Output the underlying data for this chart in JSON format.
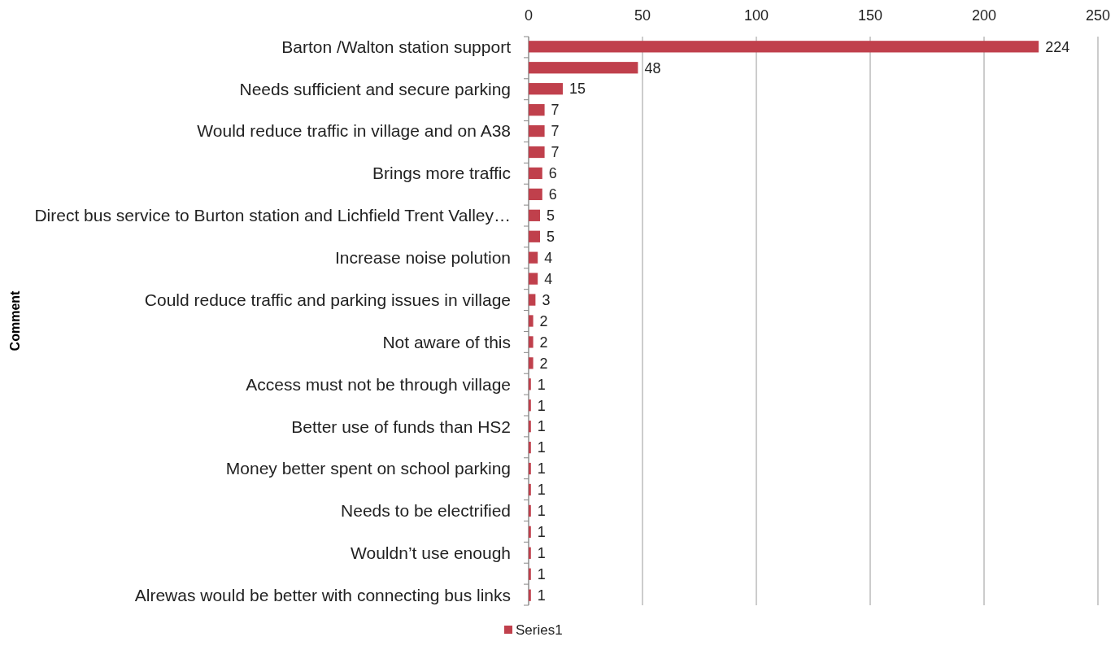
{
  "chart_data": {
    "type": "bar",
    "orientation": "horizontal",
    "ylabel": "Comment",
    "categories": [
      "Barton /Walton station support",
      null,
      "Needs sufficient and secure parking",
      null,
      "Would reduce traffic in village and on A38",
      null,
      "Brings more traffic",
      null,
      "Direct bus service to Burton station and Lichfield Trent Valley…",
      null,
      "Increase noise polution",
      null,
      "Could reduce traffic and parking issues in village",
      null,
      "Not aware of this",
      null,
      "Access must not be through village",
      null,
      "Better use of funds than HS2",
      null,
      "Money better spent on school parking",
      null,
      "Needs to be electrified",
      null,
      "Wouldn’t use enough",
      null,
      "Alrewas would be better with connecting bus links"
    ],
    "series": [
      {
        "name": "Series1",
        "color": "#c0404c",
        "values": [
          224,
          48,
          15,
          7,
          7,
          7,
          6,
          6,
          5,
          5,
          4,
          4,
          3,
          2,
          2,
          2,
          1,
          1,
          1,
          1,
          1,
          1,
          1,
          1,
          1,
          1,
          1
        ]
      }
    ],
    "xlim": [
      0,
      250
    ],
    "xticks": [
      0,
      50,
      100,
      150,
      200,
      250
    ],
    "grid": "x",
    "data_labels": true,
    "legend": "bottom"
  }
}
